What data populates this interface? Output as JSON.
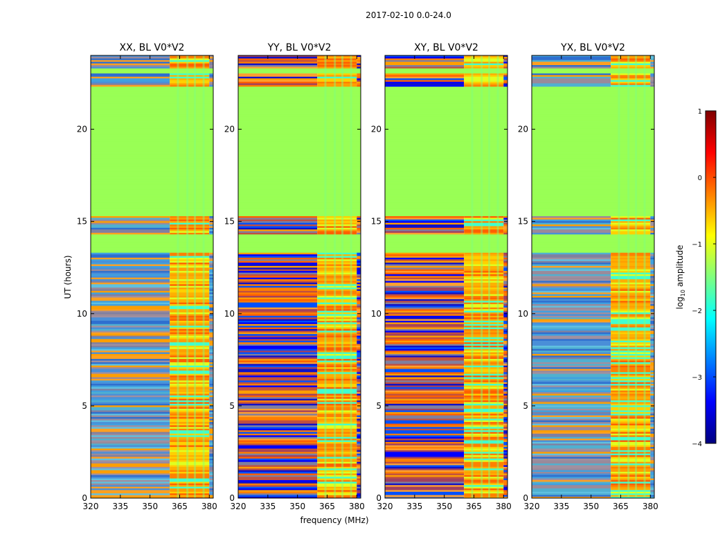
{
  "figure": {
    "title": "2017-02-10 0.0-24.0",
    "xlabel": "frequency (MHz)",
    "ylabel": "UT (hours)"
  },
  "chart_data": {
    "type": "heatmap",
    "title": "2017-02-10 0.0-24.0",
    "xlabel": "frequency (MHz)",
    "ylabel": "UT (hours)",
    "xlim": [
      320,
      382
    ],
    "ylim": [
      0,
      24
    ],
    "xticks": [
      320,
      335,
      350,
      365,
      380
    ],
    "yticks": [
      0,
      5,
      10,
      15,
      20
    ],
    "panels": [
      {
        "name": "XX, BL V0*V2",
        "base_style": "mixed"
      },
      {
        "name": "YY, BL V0*V2",
        "base_style": "banded"
      },
      {
        "name": "XY, BL V0*V2",
        "base_style": "banded"
      },
      {
        "name": "YX, BL V0*V2",
        "base_style": "mixed"
      }
    ],
    "flagged_time_ranges_hours": [
      [
        13.3,
        14.3
      ],
      [
        15.3,
        22.3
      ],
      [
        23.0,
        23.3
      ]
    ],
    "high_amplitude_freq_range_mhz": [
      360,
      380
    ],
    "colorbar": {
      "label_main": "log",
      "label_sub": "10",
      "label_suffix": " amplitude",
      "range": [
        -4,
        1
      ],
      "ticks": [
        -4,
        -3,
        -2,
        -1,
        0,
        1
      ],
      "tick_labels": [
        "−4",
        "−3",
        "−2",
        "−1",
        "0",
        "1"
      ],
      "colormap": "jet",
      "colors": [
        "#00007f",
        "#0000ff",
        "#007fff",
        "#00ffff",
        "#7fff7f",
        "#ffff00",
        "#ff7f00",
        "#ff0000",
        "#7f0000"
      ]
    },
    "colors": {
      "flagged": "#99ff55",
      "axis": "#000000"
    }
  }
}
